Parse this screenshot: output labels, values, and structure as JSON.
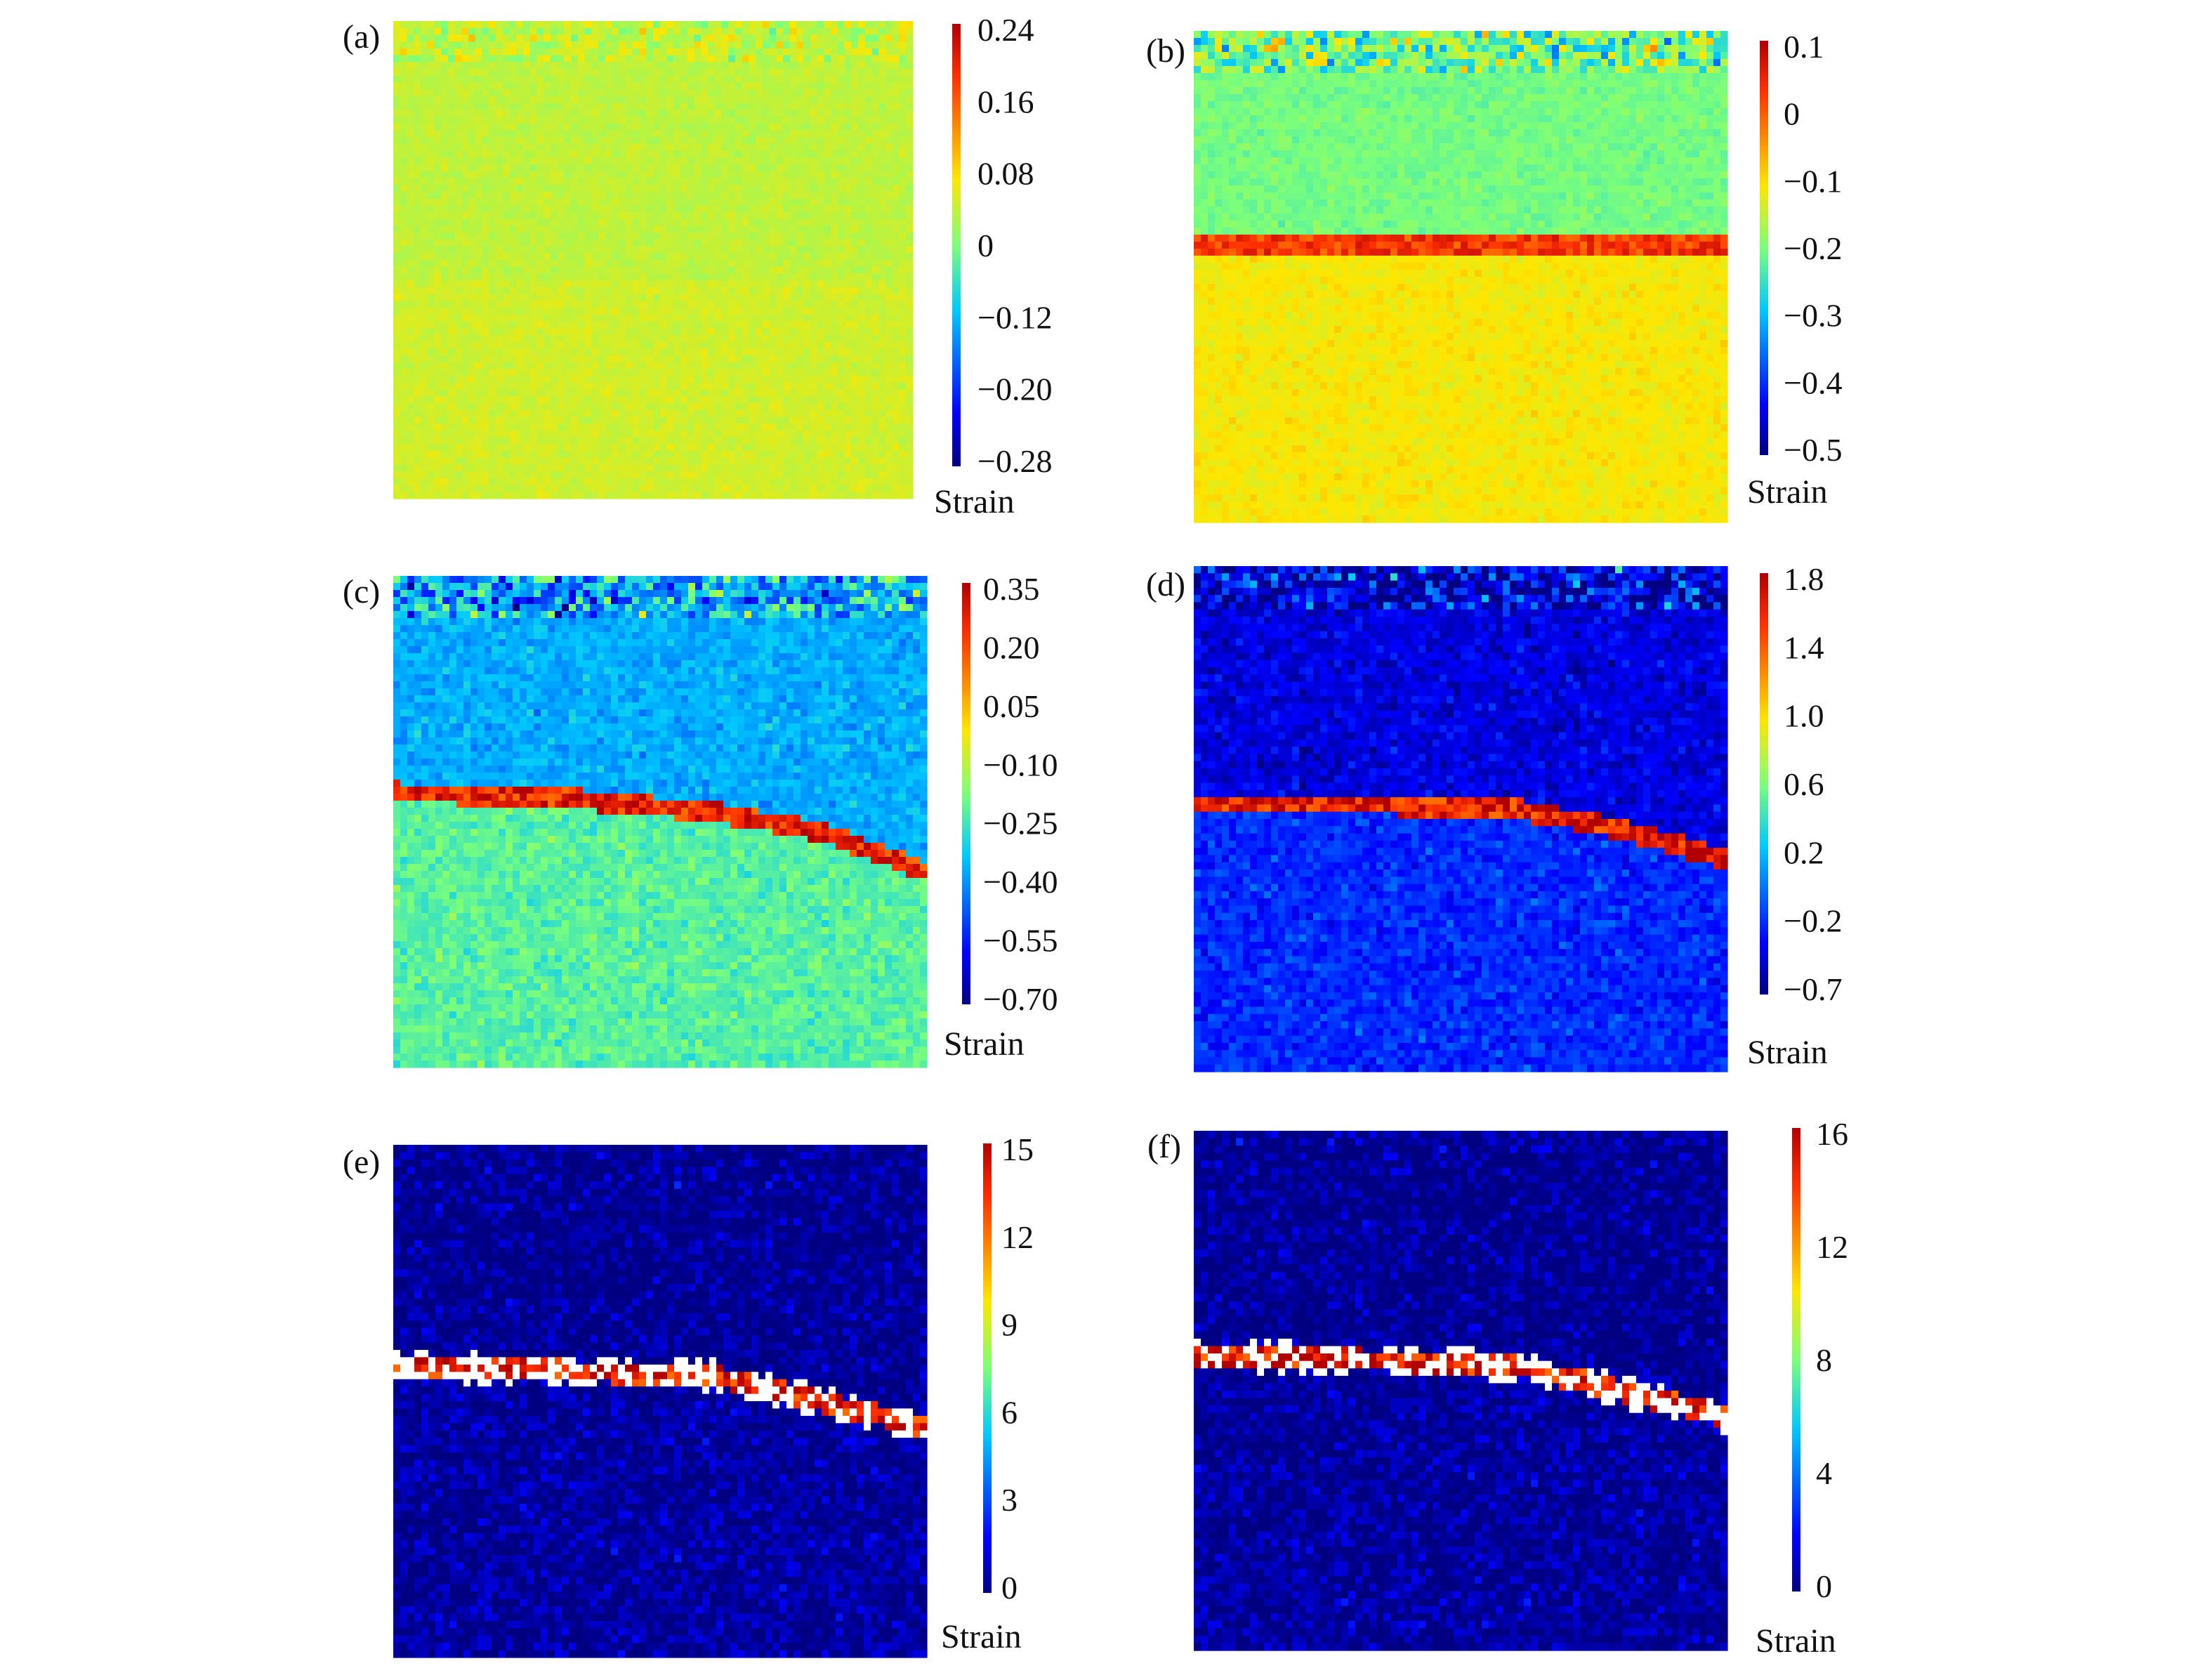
{
  "chart_data": [
    {
      "type": "heatmap",
      "panel_label": "(a)",
      "colorbar_ticks": [
        "0.24",
        "0.16",
        "0.08",
        "0",
        "−0.12",
        "−0.20",
        "−0.28"
      ],
      "colorbar_title": "Strain",
      "colorbar_range": [
        -0.28,
        0.24
      ],
      "background_level": 0.02,
      "noise": 0.05,
      "band_intensity": 0.0,
      "band_profile": [
        [
          0,
          0.55
        ],
        [
          0.3,
          0.55
        ],
        [
          0.6,
          0.55
        ],
        [
          1,
          0.55
        ]
      ],
      "top_noise": 0.15,
      "lower_level": 0.03,
      "colormap": "jet"
    },
    {
      "type": "heatmap",
      "panel_label": "(b)",
      "colorbar_ticks": [
        "0.1",
        "0",
        "−0.1",
        "−0.2",
        "−0.3",
        "−0.4",
        "−0.5"
      ],
      "colorbar_title": "Strain",
      "colorbar_range": [
        -0.55,
        0.12
      ],
      "background_level": -0.22,
      "noise": 0.06,
      "band_intensity": 0.6,
      "band_profile": [
        [
          0,
          0.43
        ],
        [
          0.3,
          0.43
        ],
        [
          0.6,
          0.44
        ],
        [
          1,
          0.44
        ]
      ],
      "top_noise": 0.35,
      "lower_level": -0.12,
      "colormap": "jet"
    },
    {
      "type": "heatmap",
      "panel_label": "(c)",
      "colorbar_ticks": [
        "0.35",
        "0.20",
        "0.05",
        "−0.10",
        "−0.25",
        "−0.40",
        "−0.55",
        "−0.70"
      ],
      "colorbar_title": "Strain",
      "colorbar_range": [
        -0.72,
        0.37
      ],
      "background_level": -0.37,
      "noise": 0.1,
      "band_intensity": 0.85,
      "band_profile": [
        [
          0,
          0.44
        ],
        [
          0.3,
          0.45
        ],
        [
          0.6,
          0.48
        ],
        [
          0.8,
          0.52
        ],
        [
          1,
          0.6
        ]
      ],
      "top_noise": 0.4,
      "lower_level": -0.22,
      "colormap": "jet"
    },
    {
      "type": "heatmap",
      "panel_label": "(d)",
      "colorbar_ticks": [
        "1.8",
        "1.4",
        "1.0",
        "0.6",
        "0.2",
        "−0.2",
        "−0.7"
      ],
      "colorbar_title": "Strain",
      "colorbar_range": [
        -0.8,
        1.9
      ],
      "background_level": -0.55,
      "noise": 0.12,
      "band_intensity": 1.0,
      "band_profile": [
        [
          0,
          0.47
        ],
        [
          0.3,
          0.47
        ],
        [
          0.6,
          0.48
        ],
        [
          0.8,
          0.52
        ],
        [
          1,
          0.58
        ]
      ],
      "top_noise": 0.4,
      "lower_level": -0.35,
      "colormap": "jet"
    },
    {
      "type": "heatmap",
      "panel_label": "(e)",
      "colorbar_ticks": [
        "15",
        "12",
        "9",
        "6",
        "3",
        "0"
      ],
      "colorbar_title": "Strain",
      "colorbar_range": [
        0,
        15
      ],
      "background_level": 0.2,
      "noise": 0.15,
      "band_intensity": 1.0,
      "band_profile": [
        [
          0,
          0.43
        ],
        [
          0.3,
          0.44
        ],
        [
          0.6,
          0.45
        ],
        [
          0.8,
          0.5
        ],
        [
          1,
          0.55
        ]
      ],
      "top_noise": 0.1,
      "lower_level": 0.4,
      "colormap": "jet"
    },
    {
      "type": "heatmap",
      "panel_label": "(f)",
      "colorbar_ticks": [
        "16",
        "12",
        "8",
        "4",
        "0"
      ],
      "colorbar_title": "Strain",
      "colorbar_range": [
        0,
        16
      ],
      "background_level": 0.2,
      "noise": 0.15,
      "band_intensity": 1.0,
      "band_profile": [
        [
          0,
          0.43
        ],
        [
          0.3,
          0.44
        ],
        [
          0.6,
          0.45
        ],
        [
          0.8,
          0.5
        ],
        [
          1,
          0.55
        ]
      ],
      "top_noise": 0.1,
      "lower_level": 0.4,
      "colormap": "jet"
    }
  ]
}
